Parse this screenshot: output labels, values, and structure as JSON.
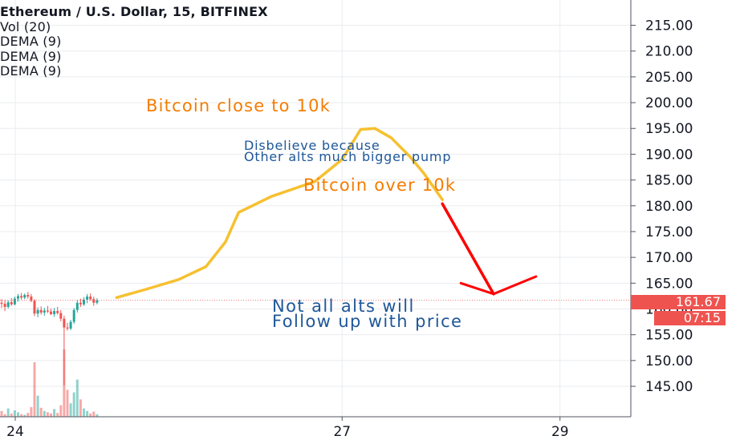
{
  "legend": {
    "title": "Ethereum / U.S. Dollar, 15, BITFINEX",
    "indicators": [
      "Vol (20)",
      "DEMA (9)",
      "DEMA (9)",
      "DEMA (9)"
    ]
  },
  "annotations": {
    "bitcoin_close": "Bitcoin close to 10k",
    "disbelieve_line1": "Disbelieve because",
    "disbelieve_line2": "Other alts much bigger pump",
    "bitcoin_over": "Bitcoin over 10k",
    "not_all_line1": "Not all alts will",
    "not_all_line2": "Follow up with price"
  },
  "price_axis": {
    "current_price": "161.67",
    "countdown": "07:15"
  },
  "colors": {
    "up": "#26a69a",
    "down": "#ef5350",
    "drawing_yellow": "#f6c030",
    "arrow_red": "#ff0000",
    "orange_text": "#f57c00",
    "blue_text": "#1e5799",
    "grid": "#e9ecef"
  },
  "chart_data": {
    "type": "candlestick",
    "symbol": "Ethereum / U.S. Dollar",
    "interval": "15",
    "exchange": "BITFINEX",
    "y_axis": {
      "ticks": [
        145,
        150,
        155,
        160,
        165,
        170,
        175,
        180,
        185,
        190,
        195,
        200,
        205,
        210,
        215
      ],
      "tick_labels": [
        "145.00",
        "150.00",
        "155.00",
        "160.00",
        "165.00",
        "170.00",
        "175.00",
        "180.00",
        "185.00",
        "190.00",
        "195.00",
        "200.00",
        "205.00",
        "210.00",
        "215.00"
      ],
      "range": [
        139.1,
        219.9
      ]
    },
    "x_axis": {
      "tick_labels": [
        "24",
        "27",
        "29"
      ],
      "tick_days": [
        24,
        27,
        29
      ],
      "range_days": [
        23.86,
        29.65
      ]
    },
    "last_price": 161.67,
    "candles": [
      {
        "o": 161.2,
        "h": 161.9,
        "l": 160.2,
        "c": 161.0
      },
      {
        "o": 161.0,
        "h": 161.8,
        "l": 159.6,
        "c": 160.4
      },
      {
        "o": 160.4,
        "h": 161.7,
        "l": 160.1,
        "c": 161.3
      },
      {
        "o": 161.3,
        "h": 162.1,
        "l": 160.6,
        "c": 160.9
      },
      {
        "o": 160.9,
        "h": 162.4,
        "l": 160.7,
        "c": 162.0
      },
      {
        "o": 162.0,
        "h": 162.9,
        "l": 161.4,
        "c": 162.5
      },
      {
        "o": 162.5,
        "h": 163.1,
        "l": 161.8,
        "c": 162.2
      },
      {
        "o": 162.2,
        "h": 163.0,
        "l": 161.9,
        "c": 162.7
      },
      {
        "o": 162.7,
        "h": 163.3,
        "l": 162.0,
        "c": 162.4
      },
      {
        "o": 162.4,
        "h": 162.9,
        "l": 161.3,
        "c": 161.6
      },
      {
        "o": 161.6,
        "h": 161.9,
        "l": 158.6,
        "c": 159.1
      },
      {
        "o": 159.1,
        "h": 160.3,
        "l": 158.4,
        "c": 159.8
      },
      {
        "o": 159.8,
        "h": 160.5,
        "l": 158.9,
        "c": 159.3
      },
      {
        "o": 159.3,
        "h": 160.2,
        "l": 158.7,
        "c": 159.7
      },
      {
        "o": 159.7,
        "h": 160.6,
        "l": 159.2,
        "c": 159.5
      },
      {
        "o": 159.5,
        "h": 160.1,
        "l": 158.8,
        "c": 159.0
      },
      {
        "o": 159.0,
        "h": 160.2,
        "l": 158.5,
        "c": 159.6
      },
      {
        "o": 159.6,
        "h": 160.4,
        "l": 158.9,
        "c": 159.2
      },
      {
        "o": 159.2,
        "h": 159.8,
        "l": 157.6,
        "c": 158.1
      },
      {
        "o": 158.1,
        "h": 158.7,
        "l": 145.2,
        "c": 156.4
      },
      {
        "o": 156.4,
        "h": 157.3,
        "l": 155.8,
        "c": 156.2
      },
      {
        "o": 156.2,
        "h": 157.9,
        "l": 155.9,
        "c": 157.5
      },
      {
        "o": 157.5,
        "h": 160.2,
        "l": 157.1,
        "c": 159.8
      },
      {
        "o": 159.8,
        "h": 161.8,
        "l": 159.3,
        "c": 161.2
      },
      {
        "o": 161.2,
        "h": 162.0,
        "l": 160.4,
        "c": 160.9
      },
      {
        "o": 160.9,
        "h": 162.3,
        "l": 160.6,
        "c": 161.8
      },
      {
        "o": 161.8,
        "h": 162.9,
        "l": 161.1,
        "c": 162.4
      },
      {
        "o": 162.4,
        "h": 163.0,
        "l": 161.6,
        "c": 161.9
      },
      {
        "o": 161.9,
        "h": 162.4,
        "l": 160.6,
        "c": 161.2
      },
      {
        "o": 161.2,
        "h": 162.1,
        "l": 160.9,
        "c": 161.7
      }
    ],
    "volume": [
      9,
      4,
      13,
      5,
      10,
      7,
      4,
      3,
      6,
      15,
      85,
      33,
      14,
      9,
      7,
      5,
      12,
      6,
      18,
      105,
      42,
      21,
      38,
      58,
      27,
      13,
      9,
      5,
      8,
      4
    ],
    "drawings": {
      "yellow_path": [
        [
          24.93,
          162.2
        ],
        [
          25.2,
          163.8
        ],
        [
          25.5,
          165.7
        ],
        [
          25.75,
          168.2
        ],
        [
          25.93,
          173.0
        ],
        [
          26.05,
          178.7
        ],
        [
          26.35,
          181.8
        ],
        [
          26.75,
          184.7
        ],
        [
          27.0,
          189.0
        ],
        [
          27.17,
          194.8
        ],
        [
          27.3,
          195.0
        ],
        [
          27.45,
          193.2
        ],
        [
          27.62,
          189.6
        ],
        [
          27.75,
          186.3
        ],
        [
          27.92,
          181.2
        ]
      ],
      "red_arrow": [
        [
          27.92,
          180.4
        ],
        [
          28.39,
          162.9
        ]
      ],
      "red_arrowhead": [
        [
          28.09,
          165.0
        ],
        [
          28.39,
          162.9
        ],
        [
          28.78,
          166.3
        ]
      ]
    }
  }
}
